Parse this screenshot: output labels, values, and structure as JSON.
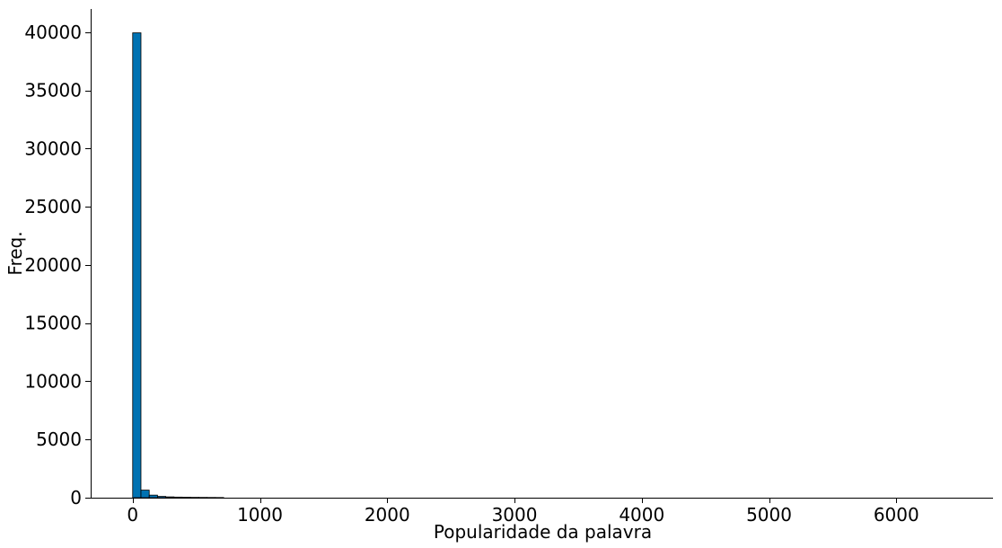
{
  "chart_data": {
    "type": "bar",
    "title": "",
    "xlabel": "Popularidade da palavra",
    "ylabel": "Freq.",
    "xlim": [
      -330,
      6760
    ],
    "ylim": [
      0,
      42000
    ],
    "x_ticks": [
      0,
      1000,
      2000,
      3000,
      4000,
      5000,
      6000
    ],
    "y_ticks": [
      0,
      5000,
      10000,
      15000,
      20000,
      25000,
      30000,
      35000,
      40000
    ],
    "bin_width": 65,
    "bin_starts": [
      0,
      65,
      130,
      195,
      260,
      325,
      390,
      455,
      520,
      585,
      650
    ],
    "values": [
      39950,
      650,
      220,
      110,
      70,
      50,
      40,
      30,
      25,
      20,
      15
    ],
    "bar_color": "#0072B2",
    "edge_color": "#000000",
    "grid": false
  }
}
